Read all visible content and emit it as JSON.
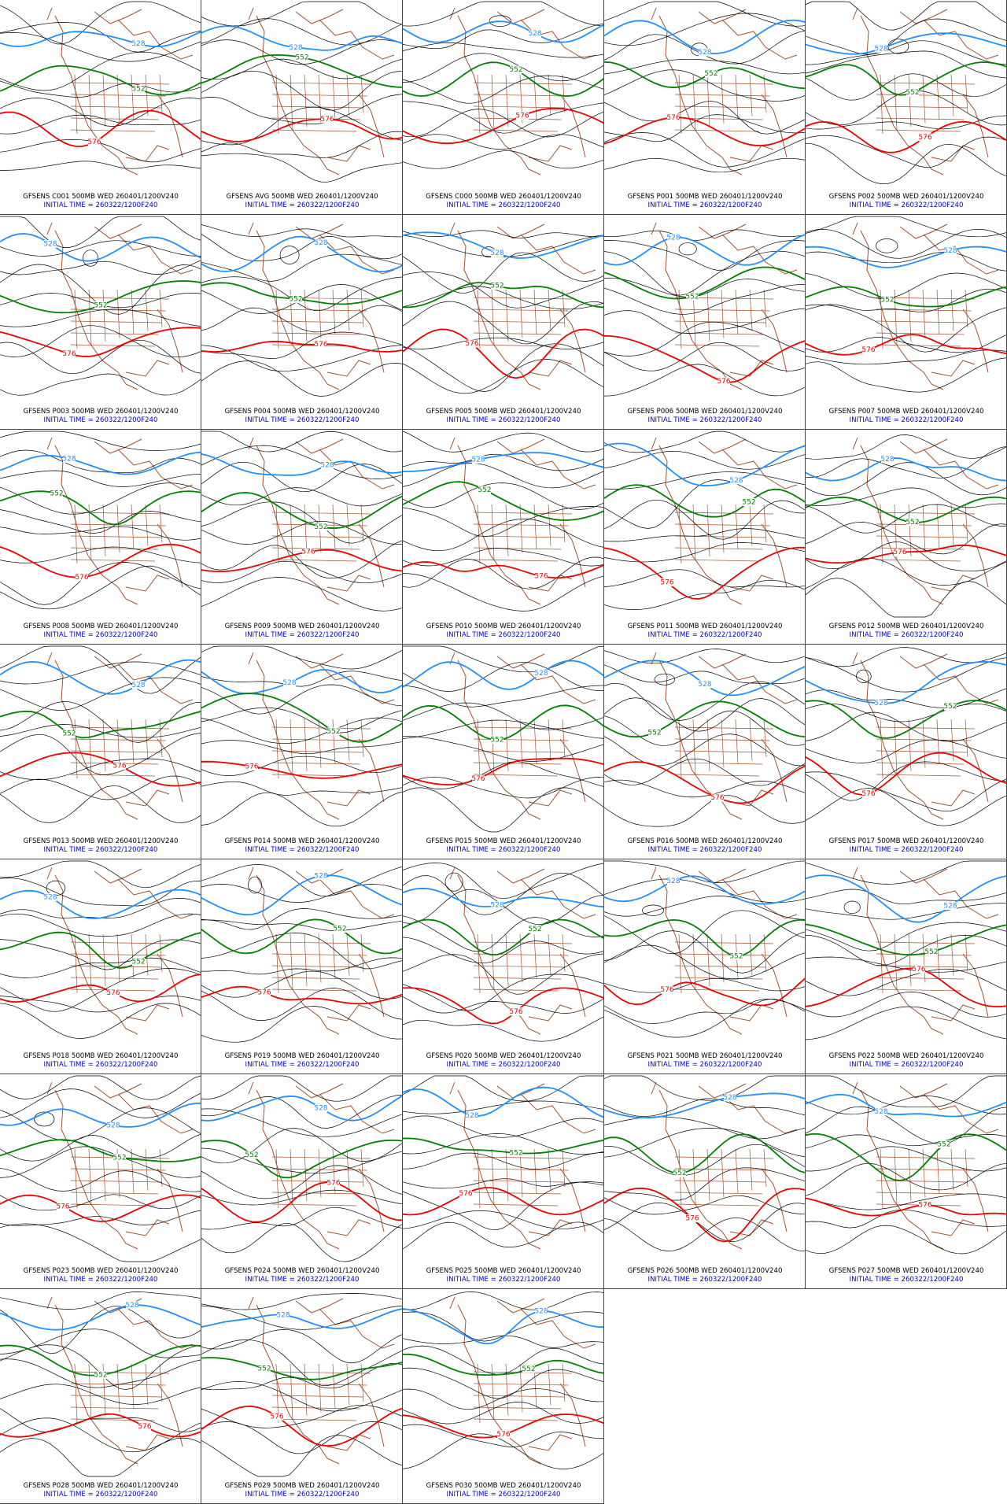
{
  "panels": [
    {
      "title": "GFSENS C001 500MB WED 260401/1200V240",
      "initial_time": "INITIAL TIME = 260322/1200F240",
      "contour_labels": [
        "528",
        "552",
        "576"
      ]
    },
    {
      "title": "GFSENS AVG 500MB WED 260401/1200V240",
      "initial_time": "INITIAL TIME = 260322/1200F240",
      "contour_labels": [
        "528",
        "552",
        "576"
      ]
    },
    {
      "title": "GFSENS C000 500MB WED 260401/1200V240",
      "initial_time": "INITIAL TIME = 260322/1200F240",
      "contour_labels": [
        "528",
        "552",
        "576"
      ]
    },
    {
      "title": "GFSENS P001 500MB WED 260401/1200V240",
      "initial_time": "INITIAL TIME = 260322/1200F240",
      "contour_labels": [
        "528",
        "552",
        "576"
      ]
    },
    {
      "title": "GFSENS P002 500MB WED 260401/1200V240",
      "initial_time": "INITIAL TIME = 260322/1200F240",
      "contour_labels": [
        "528",
        "552",
        "576"
      ]
    },
    {
      "title": "GFSENS P003 500MB WED 260401/1200V240",
      "initial_time": "INITIAL TIME = 260322/1200F240",
      "contour_labels": [
        "528",
        "552",
        "576"
      ]
    },
    {
      "title": "GFSENS P004 500MB WED 260401/1200V240",
      "initial_time": "INITIAL TIME = 260322/1200F240",
      "contour_labels": [
        "528",
        "552",
        "576"
      ]
    },
    {
      "title": "GFSENS P005 500MB WED 260401/1200V240",
      "initial_time": "INITIAL TIME = 260322/1200F240",
      "contour_labels": [
        "528",
        "552",
        "576"
      ]
    },
    {
      "title": "GFSENS P006 500MB WED 260401/1200V240",
      "initial_time": "INITIAL TIME = 260322/1200F240",
      "contour_labels": [
        "528",
        "552",
        "576"
      ]
    },
    {
      "title": "GFSENS P007 500MB WED 260401/1200V240",
      "initial_time": "INITIAL TIME = 260322/1200F240",
      "contour_labels": [
        "528",
        "552",
        "576"
      ]
    },
    {
      "title": "GFSENS P008 500MB WED 260401/1200V240",
      "initial_time": "INITIAL TIME = 260322/1200F240",
      "contour_labels": [
        "528",
        "552",
        "576"
      ]
    },
    {
      "title": "GFSENS P009 500MB WED 260401/1200V240",
      "initial_time": "INITIAL TIME = 260322/1200F240",
      "contour_labels": [
        "528",
        "552",
        "576"
      ]
    },
    {
      "title": "GFSENS P010 500MB WED 260401/1200V240",
      "initial_time": "INITIAL TIME = 260322/1200F240",
      "contour_labels": [
        "528",
        "552",
        "576"
      ]
    },
    {
      "title": "GFSENS P011 500MB WED 260401/1200V240",
      "initial_time": "INITIAL TIME = 260322/1200F240",
      "contour_labels": [
        "528",
        "552",
        "576"
      ]
    },
    {
      "title": "GFSENS P012 500MB WED 260401/1200V240",
      "initial_time": "INITIAL TIME = 260322/1200F240",
      "contour_labels": [
        "528",
        "552",
        "576"
      ]
    },
    {
      "title": "GFSENS P013 500MB WED 260401/1200V240",
      "initial_time": "INITIAL TIME = 260322/1200F240",
      "contour_labels": [
        "528",
        "552",
        "576"
      ]
    },
    {
      "title": "GFSENS P014 500MB WED 260401/1200V240",
      "initial_time": "INITIAL TIME = 260322/1200F240",
      "contour_labels": [
        "528",
        "552",
        "576"
      ]
    },
    {
      "title": "GFSENS P015 500MB WED 260401/1200V240",
      "initial_time": "INITIAL TIME = 260322/1200F240",
      "contour_labels": [
        "528",
        "552",
        "576"
      ]
    },
    {
      "title": "GFSENS P016 500MB WED 260401/1200V240",
      "initial_time": "INITIAL TIME = 260322/1200F240",
      "contour_labels": [
        "528",
        "552",
        "576"
      ]
    },
    {
      "title": "GFSENS P017 500MB WED 260401/1200V240",
      "initial_time": "INITIAL TIME = 260322/1200F240",
      "contour_labels": [
        "528",
        "552",
        "576"
      ]
    },
    {
      "title": "GFSENS P018 500MB WED 260401/1200V240",
      "initial_time": "INITIAL TIME = 260322/1200F240",
      "contour_labels": [
        "528",
        "552",
        "576"
      ]
    },
    {
      "title": "GFSENS P019 500MB WED 260401/1200V240",
      "initial_time": "INITIAL TIME = 260322/1200F240",
      "contour_labels": [
        "528",
        "552",
        "576"
      ]
    },
    {
      "title": "GFSENS P020 500MB WED 260401/1200V240",
      "initial_time": "INITIAL TIME = 260322/1200F240",
      "contour_labels": [
        "528",
        "552",
        "576"
      ]
    },
    {
      "title": "GFSENS P021 500MB WED 260401/1200V240",
      "initial_time": "INITIAL TIME = 260322/1200F240",
      "contour_labels": [
        "528",
        "552",
        "576"
      ]
    },
    {
      "title": "GFSENS P022 500MB WED 260401/1200V240",
      "initial_time": "INITIAL TIME = 260322/1200F240",
      "contour_labels": [
        "528",
        "552",
        "576"
      ]
    },
    {
      "title": "GFSENS P023 500MB WED 260401/1200V240",
      "initial_time": "INITIAL TIME = 260322/1200F240",
      "contour_labels": [
        "528",
        "552",
        "576"
      ]
    },
    {
      "title": "GFSENS P024 500MB WED 260401/1200V240",
      "initial_time": "INITIAL TIME = 260322/1200F240",
      "contour_labels": [
        "528",
        "552",
        "576"
      ]
    },
    {
      "title": "GFSENS P025 500MB WED 260401/1200V240",
      "initial_time": "INITIAL TIME = 260322/1200F240",
      "contour_labels": [
        "528",
        "552",
        "576"
      ]
    },
    {
      "title": "GFSENS P026 500MB WED 260401/1200V240",
      "initial_time": "INITIAL TIME = 260322/1200F240",
      "contour_labels": [
        "528",
        "552",
        "576"
      ]
    },
    {
      "title": "GFSENS P027 500MB WED 260401/1200V240",
      "initial_time": "INITIAL TIME = 260322/1200F240",
      "contour_labels": [
        "528",
        "552",
        "576"
      ]
    },
    {
      "title": "GFSENS P028 500MB WED 260401/1200V240",
      "initial_time": "INITIAL TIME = 260322/1200F240",
      "contour_labels": [
        "528",
        "552",
        "576"
      ]
    },
    {
      "title": "GFSENS P029 500MB WED 260401/1200V240",
      "initial_time": "INITIAL TIME = 260322/1200F240",
      "contour_labels": [
        "528",
        "552",
        "576"
      ]
    },
    {
      "title": "GFSENS P030 500MB WED 260401/1200V240",
      "initial_time": "INITIAL TIME = 260322/1200F240",
      "contour_labels": [
        "528",
        "552",
        "576"
      ]
    }
  ]
}
